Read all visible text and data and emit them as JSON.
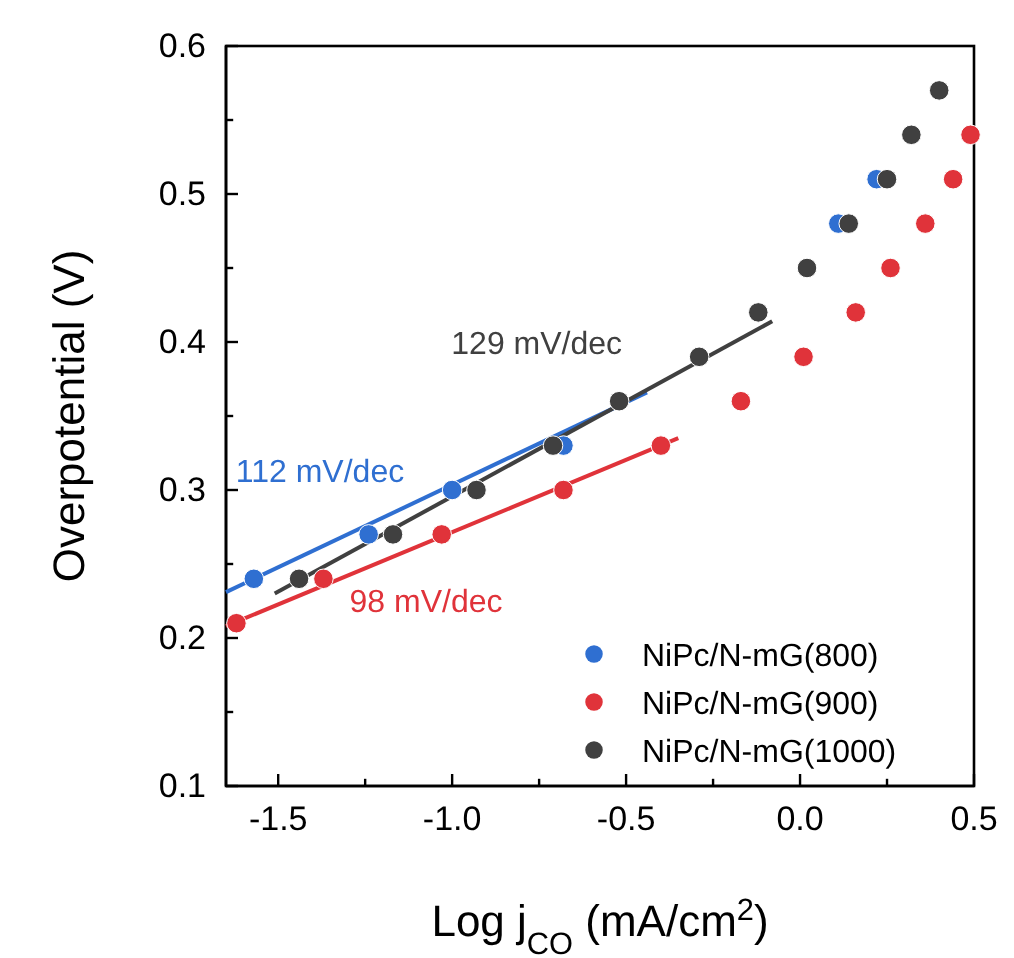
{
  "chart_data": {
    "type": "scatter",
    "xlabel": "Log j$_{CO}$ (mA/cm$^{2}$)",
    "ylabel": "Overpotential (V)",
    "xlim": [
      -1.65,
      0.5
    ],
    "ylim": [
      0.1,
      0.6
    ],
    "xticks": [
      -1.5,
      {
        "value": -1.25,
        "label": null
      },
      "-1.0",
      {
        "value": -0.75,
        "label": null
      },
      -0.5,
      {
        "value": -0.25,
        "label": null
      },
      "0.0",
      {
        "value": 0.25,
        "label": null
      },
      0.5
    ],
    "yticks": [
      0.1,
      {
        "value": 0.15,
        "label": null
      },
      0.2,
      {
        "value": 0.25,
        "label": null
      },
      0.3,
      {
        "value": 0.35,
        "label": null
      },
      0.4,
      {
        "value": 0.45,
        "label": null
      },
      0.5,
      {
        "value": 0.55,
        "label": null
      },
      0.6
    ],
    "marker": "circle",
    "legend": "bottom right",
    "grid": false,
    "series": [
      {
        "type": "line",
        "marker": "none",
        "color": "#2f6fd1",
        "x": [
          -1.65,
          -0.44
        ],
        "values": [
          0.231,
          0.366
        ]
      },
      {
        "type": "line",
        "marker": "none",
        "color": "#e0333a",
        "x": [
          -1.65,
          -0.35
        ],
        "values": [
          0.208,
          0.335
        ]
      },
      {
        "type": "line",
        "marker": "none",
        "color": "#404040",
        "x": [
          -1.51,
          -0.08
        ],
        "values": [
          0.23,
          0.414
        ]
      },
      {
        "name": "NiPc/N-mG(800)",
        "color": "#2f6fd1",
        "x": [
          -1.57,
          -1.24,
          -1.0,
          -0.68,
          0.11,
          0.22
        ],
        "values": [
          0.24,
          0.27,
          0.3,
          0.33,
          0.48,
          0.51
        ]
      },
      {
        "name": "NiPc/N-mG(900)",
        "color": "#e0333a",
        "x": [
          -1.62,
          -1.37,
          -1.03,
          -0.68,
          -0.4,
          -0.17,
          0.01,
          0.16,
          0.26,
          0.36,
          0.44,
          0.49
        ],
        "values": [
          0.21,
          0.24,
          0.27,
          0.3,
          0.33,
          0.36,
          0.39,
          0.42,
          0.45,
          0.48,
          0.51,
          0.54
        ]
      },
      {
        "name": "NiPc/N-mG(1000)",
        "color": "#404040",
        "x": [
          -1.44,
          -1.17,
          -0.93,
          -0.71,
          -0.52,
          -0.29,
          -0.12,
          0.02,
          0.14,
          0.25,
          0.32,
          0.4
        ],
        "values": [
          0.24,
          0.27,
          0.3,
          0.33,
          0.36,
          0.39,
          0.42,
          0.45,
          0.48,
          0.51,
          0.54,
          0.57
        ]
      }
    ],
    "annotations": [
      "112 mV/dec",
      "98 mV/dec",
      "129 mV/dec"
    ]
  }
}
